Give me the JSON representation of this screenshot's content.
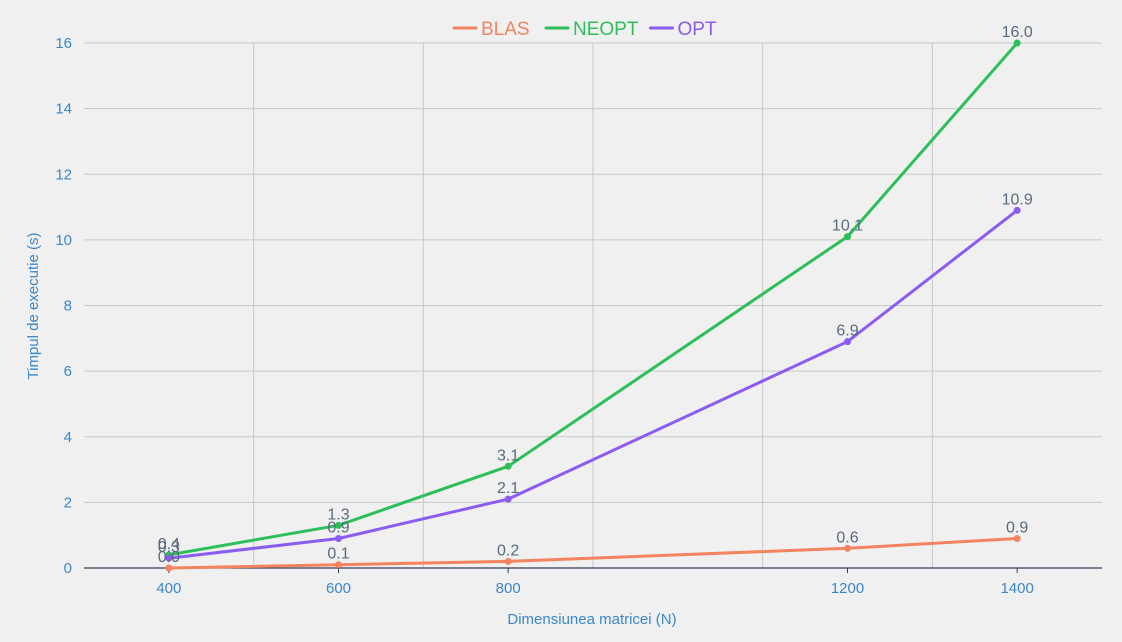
{
  "chart_data": {
    "type": "line",
    "x": [
      400,
      600,
      800,
      1200,
      1400
    ],
    "series": [
      {
        "name": "BLAS",
        "color": "#f4845f",
        "values": [
          0.0,
          0.1,
          0.2,
          0.6,
          0.9
        ],
        "labels": [
          "0.0",
          "0.1",
          "0.2",
          "0.6",
          "0.9"
        ]
      },
      {
        "name": "NEOPT",
        "color": "#2dbf5a",
        "values": [
          0.4,
          1.3,
          3.1,
          10.1,
          16.0
        ],
        "labels": [
          "0.4",
          "1.3",
          "3.1",
          "10.1",
          "16.0"
        ]
      },
      {
        "name": "OPT",
        "color": "#8a5cf0",
        "values": [
          0.3,
          0.9,
          2.1,
          6.9,
          10.9
        ],
        "labels": [
          "0.3",
          "0.9",
          "2.1",
          "6.9",
          "10.9"
        ]
      }
    ],
    "xlabel": "Dimensiunea matricei (N)",
    "ylabel": "Timpul de executie (s)",
    "xlim": [
      300,
      1500
    ],
    "ylim": [
      0,
      16
    ],
    "xticks": [
      400,
      600,
      800,
      1200,
      1400
    ],
    "yticks": [
      0,
      2,
      4,
      6,
      8,
      10,
      12,
      14,
      16
    ],
    "xgrid": [
      500,
      700,
      900,
      1100,
      1300
    ],
    "grid": true,
    "legend_position": "top-center",
    "colors": {
      "background": "#f0f0f0",
      "grid": "#c8c8c8",
      "axis_text": "#3a87c8",
      "label_text": "#5a6a7e"
    }
  }
}
